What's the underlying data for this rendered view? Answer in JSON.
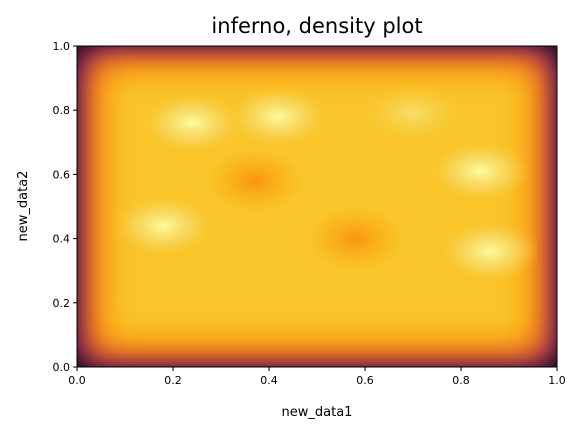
{
  "chart_data": {
    "type": "heatmap",
    "title": "inferno, density plot",
    "xlabel": "new_data1",
    "ylabel": "new_data2",
    "xlim": [
      0,
      1
    ],
    "ylim": [
      0,
      1
    ],
    "x_ticks": [
      "0.0",
      "0.2",
      "0.4",
      "0.6",
      "0.8",
      "1.0"
    ],
    "y_ticks": [
      "0.0",
      "0.2",
      "0.4",
      "0.6",
      "0.8",
      "1.0"
    ],
    "colormap": "inferno",
    "grid": false,
    "legend": false,
    "density_hotspots": [
      {
        "x": 0.24,
        "y": 0.76,
        "level": "high"
      },
      {
        "x": 0.42,
        "y": 0.78,
        "level": "high"
      },
      {
        "x": 0.18,
        "y": 0.44,
        "level": "high"
      },
      {
        "x": 0.86,
        "y": 0.36,
        "level": "high"
      },
      {
        "x": 0.84,
        "y": 0.61,
        "level": "high"
      },
      {
        "x": 0.7,
        "y": 0.79,
        "level": "medium"
      },
      {
        "x": 0.37,
        "y": 0.58,
        "level": "low"
      },
      {
        "x": 0.58,
        "y": 0.4,
        "level": "low"
      }
    ]
  }
}
